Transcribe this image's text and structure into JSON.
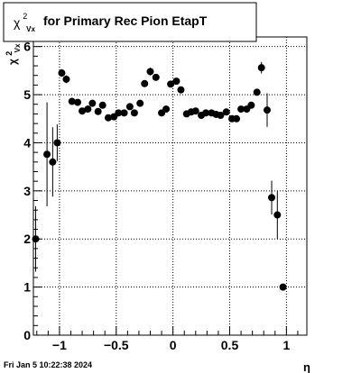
{
  "title": {
    "chi": "χ",
    "sup": "2",
    "sub": "Vx",
    "text": "for Primary Rec Pion EtapT"
  },
  "footer": {
    "datetime": "Fri Jan  5 10:22:38 2024"
  },
  "chart_data": {
    "type": "scatter",
    "title": "χ²_Vx for Primary Rec Pion EtapT",
    "xlabel": "η",
    "ylabel": "χ²_Vx",
    "xlim": [
      -1.23,
      1.18
    ],
    "ylim": [
      0,
      6.2
    ],
    "grid": true,
    "xticks": [
      -1,
      -0.5,
      0,
      0.5,
      1
    ],
    "xtick_labels": [
      "−1",
      "−0.5",
      "0",
      "0.5",
      "1"
    ],
    "yticks": [
      0,
      1,
      2,
      3,
      4,
      5,
      6
    ],
    "ytick_labels": [
      "0",
      "1",
      "2",
      "3",
      "4",
      "5",
      "6"
    ],
    "series": [
      {
        "points": [
          {
            "x": -1.21,
            "y": 2.0,
            "err": 0.68
          },
          {
            "x": -1.11,
            "y": 3.76,
            "err": 1.08
          },
          {
            "x": -1.06,
            "y": 3.6,
            "err": 0.72
          },
          {
            "x": -1.02,
            "y": 4.0,
            "err": 0.38
          },
          {
            "x": -0.98,
            "y": 5.45,
            "err": 0.08
          },
          {
            "x": -0.94,
            "y": 5.32,
            "err": 0.08
          },
          {
            "x": -0.89,
            "y": 4.86,
            "err": 0.06
          },
          {
            "x": -0.84,
            "y": 4.84,
            "err": 0.06
          },
          {
            "x": -0.8,
            "y": 4.66,
            "err": 0.06
          },
          {
            "x": -0.75,
            "y": 4.7,
            "err": 0.06
          },
          {
            "x": -0.71,
            "y": 4.82,
            "err": 0.06
          },
          {
            "x": -0.66,
            "y": 4.65,
            "err": 0.06
          },
          {
            "x": -0.62,
            "y": 4.78,
            "err": 0.06
          },
          {
            "x": -0.57,
            "y": 4.52,
            "err": 0.06
          },
          {
            "x": -0.52,
            "y": 4.54,
            "err": 0.06
          },
          {
            "x": -0.48,
            "y": 4.62,
            "err": 0.06
          },
          {
            "x": -0.43,
            "y": 4.62,
            "err": 0.06
          },
          {
            "x": -0.38,
            "y": 4.75,
            "err": 0.06
          },
          {
            "x": -0.34,
            "y": 4.62,
            "err": 0.06
          },
          {
            "x": -0.29,
            "y": 4.82,
            "err": 0.06
          },
          {
            "x": -0.25,
            "y": 5.23,
            "err": 0.06
          },
          {
            "x": -0.2,
            "y": 5.48,
            "err": 0.08
          },
          {
            "x": -0.15,
            "y": 5.36,
            "err": 0.06
          },
          {
            "x": -0.1,
            "y": 4.62,
            "err": 0.06
          },
          {
            "x": -0.06,
            "y": 4.7,
            "err": 0.06
          },
          {
            "x": -0.02,
            "y": 5.22,
            "err": 0.06
          },
          {
            "x": 0.03,
            "y": 5.28,
            "err": 0.06
          },
          {
            "x": 0.07,
            "y": 5.1,
            "err": 0.06
          },
          {
            "x": 0.12,
            "y": 4.6,
            "err": 0.06
          },
          {
            "x": 0.16,
            "y": 4.64,
            "err": 0.06
          },
          {
            "x": 0.2,
            "y": 4.66,
            "err": 0.06
          },
          {
            "x": 0.25,
            "y": 4.57,
            "err": 0.06
          },
          {
            "x": 0.29,
            "y": 4.62,
            "err": 0.06
          },
          {
            "x": 0.34,
            "y": 4.62,
            "err": 0.06
          },
          {
            "x": 0.38,
            "y": 4.59,
            "err": 0.06
          },
          {
            "x": 0.42,
            "y": 4.57,
            "err": 0.06
          },
          {
            "x": 0.47,
            "y": 4.64,
            "err": 0.06
          },
          {
            "x": 0.52,
            "y": 4.5,
            "err": 0.06
          },
          {
            "x": 0.56,
            "y": 4.5,
            "err": 0.06
          },
          {
            "x": 0.6,
            "y": 4.7,
            "err": 0.06
          },
          {
            "x": 0.65,
            "y": 4.7,
            "err": 0.06
          },
          {
            "x": 0.69,
            "y": 4.78,
            "err": 0.06
          },
          {
            "x": 0.74,
            "y": 5.05,
            "err": 0.06
          },
          {
            "x": 0.78,
            "y": 5.56,
            "err": 0.12
          },
          {
            "x": 0.83,
            "y": 4.68,
            "err": 0.35
          },
          {
            "x": 0.87,
            "y": 2.86,
            "err": 0.35
          },
          {
            "x": 0.92,
            "y": 2.5,
            "err": 0.5
          },
          {
            "x": 0.97,
            "y": 1.0,
            "err": 0.0
          }
        ]
      }
    ]
  }
}
